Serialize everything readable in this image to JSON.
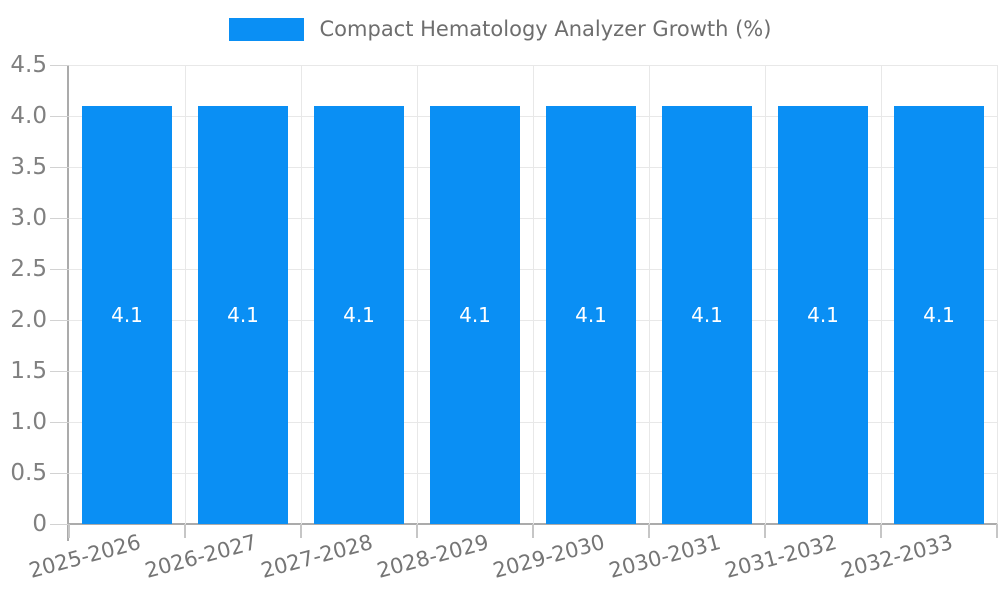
{
  "chart_data": {
    "type": "bar",
    "title": "Compact Hematology Analyzer Growth (%)",
    "legend": {
      "position": "top",
      "entries": [
        "Compact Hematology Analyzer Growth (%)"
      ]
    },
    "categories": [
      "2025-2026",
      "2026-2027",
      "2027-2028",
      "2028-2029",
      "2029-2030",
      "2030-2031",
      "2031-2032",
      "2032-2033"
    ],
    "series": [
      {
        "name": "Compact Hematology Analyzer Growth (%)",
        "values": [
          4.1,
          4.1,
          4.1,
          4.1,
          4.1,
          4.1,
          4.1,
          4.1
        ]
      }
    ],
    "value_labels": [
      "4.1",
      "4.1",
      "4.1",
      "4.1",
      "4.1",
      "4.1",
      "4.1",
      "4.1"
    ],
    "xlabel": "",
    "ylabel": "",
    "ylim": [
      0,
      4.5
    ],
    "ytick_step": 0.5,
    "yticks": [
      "0",
      "0.5",
      "1.0",
      "1.5",
      "2.0",
      "2.5",
      "3.0",
      "3.5",
      "4.0",
      "4.5"
    ],
    "grid": true,
    "colors": {
      "bar": "#0a8ff4",
      "grid": "#e8e8e8",
      "axis": "#ababab",
      "y_tick_label": "#808080",
      "x_tick_label": "#757575",
      "legend_text": "#6e6e6e",
      "value_label": "#ffffff",
      "background": "#ffffff"
    }
  }
}
